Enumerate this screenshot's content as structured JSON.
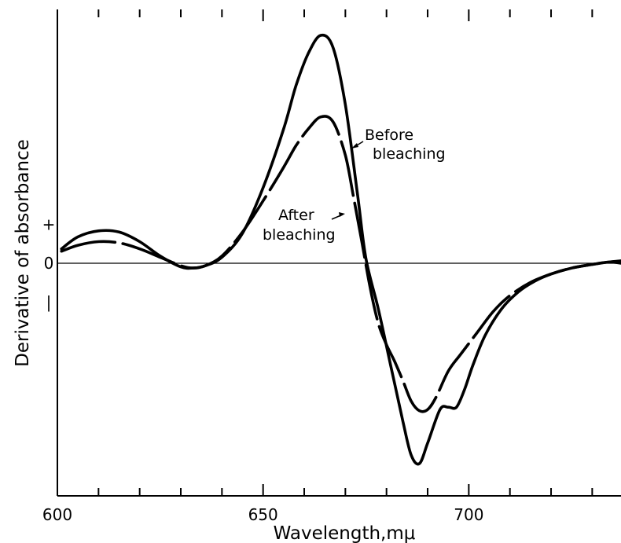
{
  "chart_data": {
    "type": "line",
    "xlabel": "Wavelength,mμ",
    "ylabel": "Derivative of absorbance",
    "xlim": [
      600,
      737
    ],
    "ylim": [
      -1.9,
      1.9
    ],
    "x_ticks": [
      600,
      650,
      700
    ],
    "x_tick_labels": [
      "600",
      "650",
      "700"
    ],
    "x_minor_step": 10,
    "y_tick_labels": [
      {
        "value": 0.325,
        "label": "+"
      },
      {
        "value": 0,
        "label": "0"
      },
      {
        "value": -0.325,
        "label": "|"
      }
    ],
    "zero_line": true,
    "grid": false,
    "series": [
      {
        "style": "solid",
        "annotation_lines": [
          "Before",
          "bleaching"
        ],
        "x": [
          601,
          605,
          610,
          615,
          620,
          625,
          630,
          633,
          636,
          640,
          645,
          650,
          655,
          658,
          661,
          664,
          667,
          670,
          673,
          675,
          678,
          681,
          684,
          686,
          688,
          690,
          693,
          695,
          697,
          699,
          701,
          704,
          708,
          712,
          716,
          720,
          725,
          730,
          734,
          737
        ],
        "y": [
          0.12,
          0.22,
          0.27,
          0.26,
          0.18,
          0.06,
          -0.03,
          -0.04,
          -0.02,
          0.05,
          0.25,
          0.63,
          1.12,
          1.48,
          1.75,
          1.9,
          1.8,
          1.32,
          0.56,
          0.04,
          -0.38,
          -0.85,
          -1.32,
          -1.6,
          -1.67,
          -1.5,
          -1.22,
          -1.2,
          -1.2,
          -1.05,
          -0.85,
          -0.6,
          -0.38,
          -0.24,
          -0.15,
          -0.09,
          -0.04,
          -0.01,
          0.01,
          0.0
        ]
      },
      {
        "style": "dashed",
        "annotation_lines": [
          "After",
          "bleaching"
        ],
        "x": [
          601,
          605,
          610,
          615,
          620,
          625,
          630,
          633,
          636,
          640,
          645,
          650,
          655,
          658,
          661,
          664,
          667,
          670,
          672,
          674,
          676,
          678,
          680,
          682,
          684,
          686,
          688,
          690,
          692,
          695,
          698,
          702,
          706,
          710,
          715,
          720,
          725,
          730,
          734,
          737
        ],
        "y": [
          0.1,
          0.15,
          0.18,
          0.17,
          0.12,
          0.05,
          -0.02,
          -0.04,
          -0.02,
          0.06,
          0.26,
          0.52,
          0.8,
          0.98,
          1.12,
          1.22,
          1.18,
          0.9,
          0.55,
          0.18,
          -0.2,
          -0.5,
          -0.68,
          -0.82,
          -0.98,
          -1.15,
          -1.23,
          -1.22,
          -1.12,
          -0.9,
          -0.76,
          -0.58,
          -0.4,
          -0.27,
          -0.16,
          -0.09,
          -0.04,
          -0.01,
          0.01,
          0.02
        ]
      }
    ]
  }
}
